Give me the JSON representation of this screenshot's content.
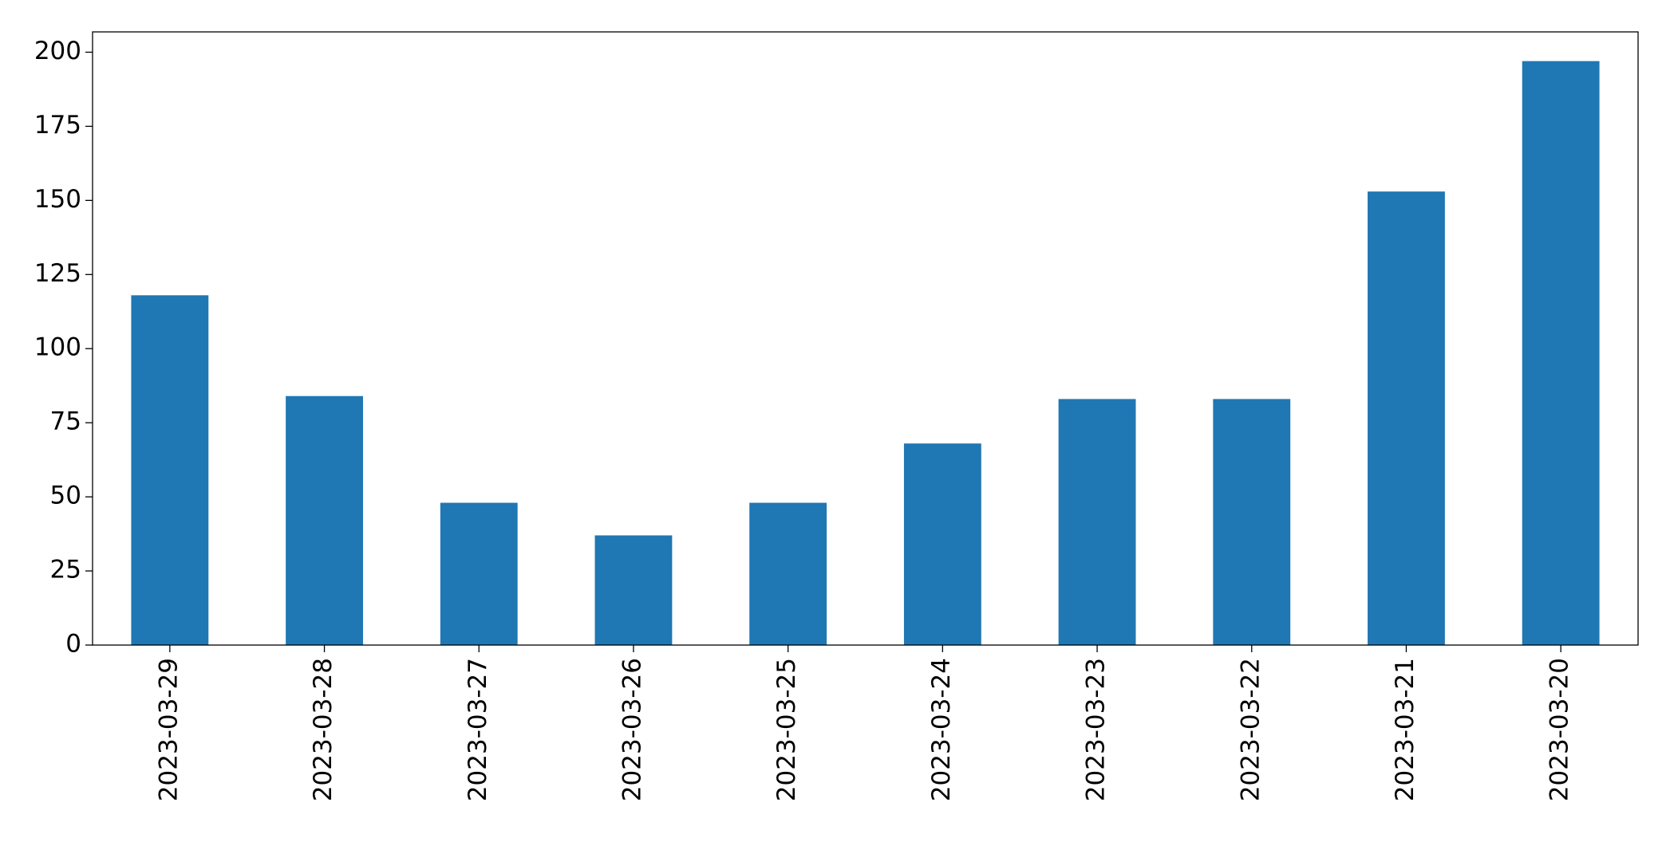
{
  "chart_data": {
    "type": "bar",
    "categories": [
      "2023-03-29",
      "2023-03-28",
      "2023-03-27",
      "2023-03-26",
      "2023-03-25",
      "2023-03-24",
      "2023-03-23",
      "2023-03-22",
      "2023-03-21",
      "2023-03-20"
    ],
    "values": [
      118,
      84,
      48,
      37,
      48,
      68,
      83,
      83,
      153,
      197
    ],
    "color": "#1f77b4",
    "ylim": [
      0,
      206.85
    ],
    "yticks": [
      0,
      25,
      50,
      75,
      100,
      125,
      150,
      175,
      200
    ],
    "grid": false
  }
}
